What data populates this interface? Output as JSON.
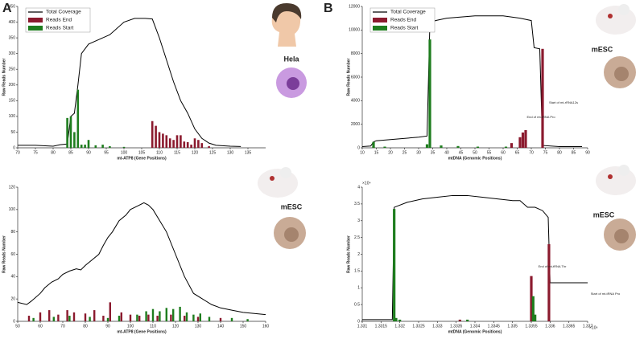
{
  "panel_labels": [
    "A",
    "B"
  ],
  "chart_data": [
    {
      "type": "combo",
      "xlabel": "mt-ATP8 (Gene Positions)",
      "ylabel": "Raw Reads Number",
      "xlim": [
        70,
        140
      ],
      "ylim": [
        0,
        450
      ],
      "xticks": [
        70,
        75,
        80,
        85,
        90,
        95,
        100,
        105,
        110,
        115,
        120,
        125,
        130,
        135
      ],
      "yticks": [
        0,
        50,
        100,
        150,
        200,
        250,
        300,
        350,
        400,
        450
      ],
      "legend": "upper left",
      "annotations": [
        "Hela"
      ],
      "series": [
        {
          "name": "Total Coverage",
          "kind": "line",
          "color": "#000000",
          "x": [
            70,
            75,
            80,
            82,
            84,
            85,
            86,
            87,
            88,
            90,
            93,
            96,
            100,
            103,
            106,
            108,
            110,
            112,
            114,
            116,
            118,
            120,
            122,
            124,
            126,
            130,
            133
          ],
          "values": [
            8,
            8,
            5,
            10,
            12,
            100,
            110,
            200,
            300,
            330,
            345,
            360,
            400,
            412,
            412,
            410,
            350,
            280,
            210,
            150,
            110,
            60,
            30,
            15,
            8,
            5,
            4
          ]
        },
        {
          "name": "Reads End",
          "kind": "bar",
          "color": "#8b1a2e",
          "x": [
            108,
            109,
            110,
            111,
            112,
            113,
            114,
            115,
            116,
            117,
            118,
            119,
            120,
            121,
            122,
            124
          ],
          "values": [
            85,
            70,
            50,
            45,
            40,
            30,
            25,
            40,
            40,
            20,
            18,
            10,
            30,
            25,
            15,
            5
          ]
        },
        {
          "name": "Reads Start",
          "kind": "bar",
          "color": "#1e7d1e",
          "x": [
            84,
            85,
            86,
            87,
            88,
            89,
            90,
            92,
            94,
            96,
            100
          ],
          "values": [
            95,
            100,
            50,
            185,
            10,
            10,
            25,
            8,
            10,
            5,
            3
          ]
        }
      ]
    },
    {
      "type": "combo",
      "xlabel": "mt-ATP8 (Gene Positions)",
      "ylabel": "Raw Reads Number",
      "xlim": [
        50,
        160
      ],
      "ylim": [
        0,
        120
      ],
      "xticks": [
        50,
        60,
        70,
        80,
        90,
        100,
        110,
        120,
        130,
        140,
        150,
        160
      ],
      "yticks": [
        0,
        20,
        40,
        60,
        80,
        100,
        120
      ],
      "annotations": [
        "mESC"
      ],
      "series": [
        {
          "name": "Total Coverage",
          "kind": "line",
          "color": "#000000",
          "x": [
            50,
            54,
            56,
            60,
            62,
            65,
            68,
            70,
            73,
            76,
            78,
            80,
            83,
            86,
            88,
            90,
            92,
            95,
            98,
            100,
            103,
            106,
            108,
            110,
            113,
            116,
            120,
            124,
            128,
            132,
            136,
            140,
            145,
            150,
            155,
            160
          ],
          "values": [
            17,
            15,
            18,
            25,
            30,
            35,
            38,
            42,
            45,
            47,
            46,
            50,
            55,
            60,
            68,
            75,
            80,
            90,
            95,
            100,
            103,
            106,
            104,
            100,
            90,
            80,
            60,
            40,
            25,
            20,
            15,
            12,
            10,
            8,
            7,
            6
          ]
        },
        {
          "name": "Reads End",
          "kind": "bar",
          "color": "#8b1a2e",
          "x": [
            55,
            60,
            64,
            68,
            72,
            75,
            80,
            84,
            88,
            91,
            96,
            100,
            104,
            108,
            112,
            118,
            124,
            130,
            140
          ],
          "values": [
            5,
            8,
            10,
            6,
            10,
            8,
            7,
            10,
            5,
            17,
            8,
            6,
            5,
            6,
            5,
            6,
            5,
            4,
            3
          ]
        },
        {
          "name": "Reads Start",
          "kind": "bar",
          "color": "#1e7d1e",
          "x": [
            57,
            66,
            73,
            82,
            90,
            95,
            103,
            107,
            110,
            113,
            116,
            119,
            122,
            125,
            128,
            131,
            135,
            145,
            152
          ],
          "values": [
            3,
            4,
            5,
            4,
            3,
            5,
            6,
            9,
            11,
            9,
            12,
            11,
            13,
            8,
            6,
            7,
            4,
            3,
            2
          ]
        }
      ]
    },
    {
      "type": "combo",
      "xlabel": "mtDNA (Genomic Positions)",
      "ylabel": "Raw Reads Number",
      "xlim": [
        10,
        90
      ],
      "ylim": [
        0,
        12000
      ],
      "xticks": [
        10,
        15,
        20,
        25,
        30,
        35,
        40,
        45,
        50,
        55,
        60,
        65,
        70,
        75,
        80,
        85,
        90
      ],
      "yticks": [
        0,
        2000,
        4000,
        6000,
        8000,
        10000,
        12000
      ],
      "legend": "upper left",
      "annotations": [
        "mESC",
        "End of mt-tRNA Pro",
        "Start of mt-rRNA12s"
      ],
      "series": [
        {
          "name": "Total Coverage",
          "kind": "line",
          "color": "#000000",
          "x": [
            10,
            13,
            14,
            15,
            20,
            30,
            33,
            34,
            36,
            40,
            50,
            60,
            66,
            70,
            71,
            73,
            74,
            80,
            88
          ],
          "values": [
            100,
            150,
            500,
            600,
            700,
            900,
            1000,
            10500,
            10800,
            11000,
            11200,
            11200,
            11000,
            10800,
            8500,
            8400,
            200,
            100,
            100
          ]
        },
        {
          "name": "Reads End",
          "kind": "bar",
          "color": "#8b1a2e",
          "x": [
            14,
            63,
            66,
            67,
            68,
            74
          ],
          "values": [
            100,
            400,
            900,
            1300,
            1500,
            8400
          ]
        },
        {
          "name": "Reads Start",
          "kind": "bar",
          "color": "#1e7d1e",
          "x": [
            14,
            18,
            33,
            34,
            38,
            44,
            51,
            61
          ],
          "values": [
            500,
            100,
            300,
            9200,
            200,
            150,
            100,
            100
          ]
        }
      ]
    },
    {
      "type": "combo",
      "xlabel": "mtDNA (Genomic Positions)",
      "ylabel": "Raw Reads Number",
      "x_multiplier": "×10⁶",
      "y_multiplier": "×10⁴",
      "xlim": [
        1.331,
        1.337
      ],
      "ylim": [
        0,
        4
      ],
      "xticks": [
        1.331,
        1.3315,
        1.332,
        1.3325,
        1.333,
        1.3335,
        1.334,
        1.3345,
        1.335,
        1.3355,
        1.336,
        1.3365,
        1.337
      ],
      "yticks": [
        0,
        0.5,
        1,
        1.5,
        2,
        2.5,
        3,
        3.5,
        4
      ],
      "annotations": [
        "mESC",
        "End of mt-tRNA Thr",
        "Start of mt-tRNA Pro"
      ],
      "series": [
        {
          "name": "Total Coverage",
          "kind": "line",
          "color": "#000000",
          "x": [
            1.331,
            1.3318,
            1.33185,
            1.3322,
            1.3326,
            1.333,
            1.3334,
            1.3338,
            1.3342,
            1.3346,
            1.335,
            1.3352,
            1.3354,
            1.3356,
            1.3358,
            1.33595,
            1.336,
            1.337
          ],
          "values": [
            0.05,
            0.05,
            3.4,
            3.55,
            3.65,
            3.7,
            3.75,
            3.75,
            3.7,
            3.65,
            3.6,
            3.6,
            3.4,
            3.4,
            3.3,
            3.1,
            1.15,
            1.15
          ]
        },
        {
          "name": "Reads End",
          "kind": "bar",
          "color": "#8b1a2e",
          "x": [
            1.3336,
            1.3355,
            1.33597
          ],
          "values": [
            0.05,
            1.35,
            2.3
          ]
        },
        {
          "name": "Reads Start",
          "kind": "bar",
          "color": "#1e7d1e",
          "x": [
            1.33185,
            1.3319,
            1.332,
            1.3338,
            1.33555,
            1.3356
          ],
          "values": [
            3.35,
            0.1,
            0.05,
            0.05,
            0.75,
            0.2
          ]
        }
      ]
    }
  ]
}
